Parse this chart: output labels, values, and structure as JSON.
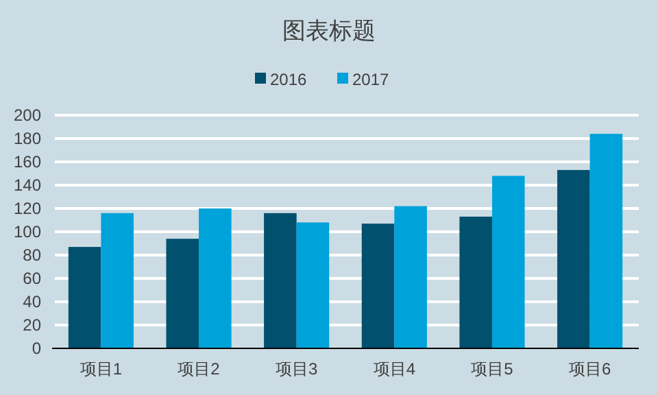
{
  "chart_data": {
    "type": "bar",
    "title": "图表标题",
    "categories": [
      "项目1",
      "项目2",
      "项目3",
      "项目4",
      "项目5",
      "项目6"
    ],
    "series": [
      {
        "name": "2016",
        "color": "#00506e",
        "values": [
          87,
          94,
          116,
          107,
          113,
          153
        ]
      },
      {
        "name": "2017",
        "color": "#00a2da",
        "values": [
          116,
          120,
          108,
          122,
          148,
          184
        ]
      }
    ],
    "ylim": [
      0,
      200
    ],
    "yticks": [
      0,
      20,
      40,
      60,
      80,
      100,
      120,
      140,
      160,
      180,
      200
    ],
    "grid": "y",
    "legend": "top"
  }
}
